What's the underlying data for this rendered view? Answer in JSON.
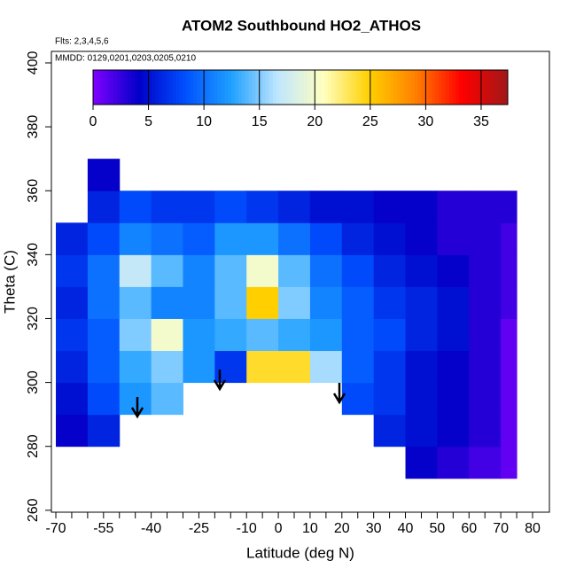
{
  "chart_data": {
    "type": "heatmap",
    "title": "ATOM2 Southbound HO2_ATHOS",
    "subtitle": "Flts: 2,3,4,5,6",
    "annotation": "MMDD: 0129,0201,0203,0205,0210",
    "x_label": "Latitude (deg N)",
    "y_label": "Theta (C)",
    "xlim": [
      -71.4,
      85.3
    ],
    "xticks": [
      -70,
      -55,
      -40,
      -25,
      -10,
      0,
      10,
      20,
      30,
      40,
      50,
      60,
      70,
      80
    ],
    "xminorticks": [
      -65,
      -60,
      -50,
      -45,
      -35,
      -30,
      -20,
      -15,
      -5,
      5,
      15,
      25,
      35,
      45,
      55,
      65,
      75
    ],
    "ylim": [
      259.4,
      403.6
    ],
    "yticks": [
      260,
      280,
      300,
      320,
      340,
      360,
      380,
      400
    ],
    "x_edges": [
      -70,
      -60,
      -50,
      -40,
      -30,
      -20,
      -10,
      0,
      10,
      20,
      30,
      40,
      50,
      60,
      70,
      75
    ],
    "y_edges": [
      270,
      280,
      290,
      300,
      310,
      320,
      330,
      340,
      350,
      360,
      370
    ],
    "values": [
      [
        null,
        null,
        null,
        null,
        null,
        null,
        null,
        null,
        null,
        null,
        null,
        4,
        3,
        2,
        1
      ],
      [
        4,
        6,
        null,
        null,
        null,
        null,
        null,
        null,
        null,
        null,
        6,
        5,
        4,
        3,
        1
      ],
      [
        5,
        8,
        12,
        14,
        null,
        null,
        null,
        null,
        null,
        8,
        7,
        5,
        4,
        3,
        1
      ],
      [
        6,
        9,
        13,
        15,
        12,
        7,
        24,
        24,
        16,
        9,
        7,
        5,
        4,
        3,
        1
      ],
      [
        7,
        9,
        15,
        20,
        12,
        13,
        14,
        13,
        12,
        9,
        8,
        6,
        5,
        3,
        1
      ],
      [
        6,
        10,
        14,
        11,
        11,
        14,
        25,
        15,
        11,
        9,
        7,
        6,
        5,
        3,
        2
      ],
      [
        7,
        10,
        17,
        14,
        11,
        14,
        20,
        14,
        10,
        8,
        6,
        5,
        4,
        3,
        2
      ],
      [
        6,
        8,
        11,
        10,
        9,
        12,
        12,
        10,
        8,
        6,
        5,
        4,
        3,
        3,
        2
      ],
      [
        null,
        6,
        8,
        7,
        7,
        8,
        7,
        6,
        5,
        5,
        4,
        4,
        3,
        3,
        3
      ],
      [
        null,
        4,
        null,
        null,
        null,
        null,
        null,
        null,
        null,
        null,
        null,
        null,
        null,
        null,
        null
      ]
    ],
    "colorbar": {
      "lim": [
        0,
        37.4
      ],
      "ticks": [
        0,
        5,
        10,
        15,
        20,
        25,
        30,
        35
      ],
      "colors": [
        "#8000ff",
        "#0000c8",
        "#0050ff",
        "#1ea0ff",
        "#bfe6ff",
        "#ffffc0",
        "#ffd000",
        "#ff8000",
        "#ff0000",
        "#a01818"
      ]
    }
  }
}
